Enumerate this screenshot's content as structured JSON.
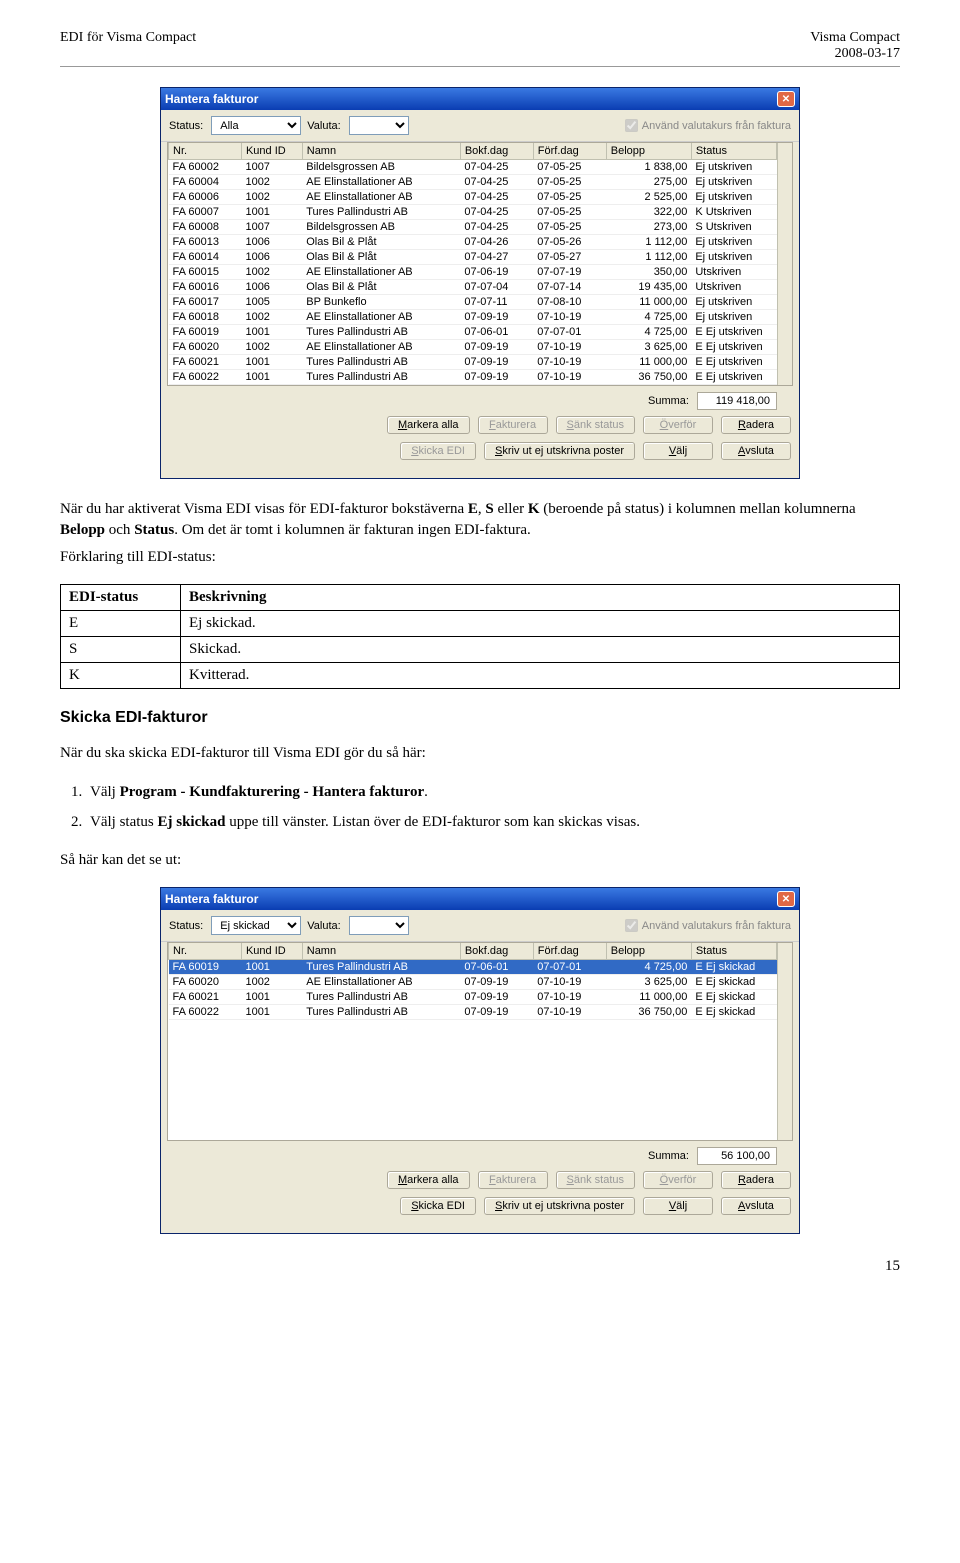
{
  "header": {
    "left": "EDI för Visma Compact",
    "right_line1": "Visma Compact",
    "right_line2": "2008-03-17"
  },
  "window1": {
    "title": "Hantera fakturor",
    "status_label": "Status:",
    "status_value": "Alla",
    "valuta_label": "Valuta:",
    "valuta_value": "",
    "use_rate_label": "Använd valutakurs från faktura",
    "columns": [
      "Nr.",
      "Kund ID",
      "Namn",
      "Bokf.dag",
      "Förf.dag",
      "Belopp",
      "Status"
    ],
    "colwidths": [
      "12%",
      "10%",
      "26%",
      "12%",
      "12%",
      "14%",
      "14%"
    ],
    "rows": [
      [
        "FA 60002",
        "1007",
        "Bildelsgrossen AB",
        "07-04-25",
        "07-05-25",
        "1 838,00",
        "Ej utskriven"
      ],
      [
        "FA 60004",
        "1002",
        "AE Elinstallationer AB",
        "07-04-25",
        "07-05-25",
        "275,00",
        "Ej utskriven"
      ],
      [
        "FA 60006",
        "1002",
        "AE Elinstallationer AB",
        "07-04-25",
        "07-05-25",
        "2 525,00",
        "Ej utskriven"
      ],
      [
        "FA 60007",
        "1001",
        "Tures Pallindustri AB",
        "07-04-25",
        "07-05-25",
        "322,00",
        "K Utskriven"
      ],
      [
        "FA 60008",
        "1007",
        "Bildelsgrossen AB",
        "07-04-25",
        "07-05-25",
        "273,00",
        "S Utskriven"
      ],
      [
        "FA 60013",
        "1006",
        "Olas Bil & Plåt",
        "07-04-26",
        "07-05-26",
        "1 112,00",
        "Ej utskriven"
      ],
      [
        "FA 60014",
        "1006",
        "Olas Bil & Plåt",
        "07-04-27",
        "07-05-27",
        "1 112,00",
        "Ej utskriven"
      ],
      [
        "FA 60015",
        "1002",
        "AE Elinstallationer AB",
        "07-06-19",
        "07-07-19",
        "350,00",
        "Utskriven"
      ],
      [
        "FA 60016",
        "1006",
        "Olas Bil & Plåt",
        "07-07-04",
        "07-07-14",
        "19 435,00",
        "Utskriven"
      ],
      [
        "FA 60017",
        "1005",
        "BP Bunkeflo",
        "07-07-11",
        "07-08-10",
        "11 000,00",
        "Ej utskriven"
      ],
      [
        "FA 60018",
        "1002",
        "AE Elinstallationer AB",
        "07-09-19",
        "07-10-19",
        "4 725,00",
        "Ej utskriven"
      ],
      [
        "FA 60019",
        "1001",
        "Tures Pallindustri AB",
        "07-06-01",
        "07-07-01",
        "4 725,00",
        "E Ej utskriven"
      ],
      [
        "FA 60020",
        "1002",
        "AE Elinstallationer AB",
        "07-09-19",
        "07-10-19",
        "3 625,00",
        "E Ej utskriven"
      ],
      [
        "FA 60021",
        "1001",
        "Tures Pallindustri AB",
        "07-09-19",
        "07-10-19",
        "11 000,00",
        "E Ej utskriven"
      ],
      [
        "FA 60022",
        "1001",
        "Tures Pallindustri AB",
        "07-09-19",
        "07-10-19",
        "36 750,00",
        "E Ej utskriven"
      ]
    ],
    "summa_label": "Summa:",
    "summa_value": "119 418,00",
    "buttons_row1": [
      "Markera alla",
      "Fakturera",
      "Sänk status",
      "Överför",
      "Radera"
    ],
    "buttons_row2": [
      "Skicka EDI",
      "Skriv ut ej utskrivna poster",
      "Välj",
      "Avsluta"
    ]
  },
  "para1_a": "När du har aktiverat Visma EDI visas för EDI-fakturor bokstäverna ",
  "para1_b": ", ",
  "para1_c": " eller ",
  "para1_d": " (beroende på status) i kolumnen mellan kolumnerna ",
  "para1_e": " och ",
  "para1_f": ". Om det är tomt i kolumnen är fakturan ingen EDI-faktura.",
  "para1_E": "E",
  "para1_S": "S",
  "para1_K": "K",
  "para1_belopp": "Belopp",
  "para1_status": "Status",
  "para2": "Förklaring till EDI-status:",
  "deftable": {
    "head": [
      "EDI-status",
      "Beskrivning"
    ],
    "rows": [
      [
        "E",
        "Ej skickad."
      ],
      [
        "S",
        "Skickad."
      ],
      [
        "K",
        "Kvitterad."
      ]
    ]
  },
  "sub_heading": "Skicka EDI-fakturor",
  "para3": "När du ska skicka EDI-fakturor till Visma EDI gör du så här:",
  "step1_a": "Välj ",
  "step1_b": "Program - Kundfakturering - Hantera fakturor",
  "step1_c": ".",
  "step2_a": "Välj status ",
  "step2_b": "Ej skickad",
  "step2_c": " uppe till vänster. Listan över de EDI-fakturor som kan skickas visas.",
  "para4": "Så här kan det se ut:",
  "window2": {
    "title": "Hantera fakturor",
    "status_label": "Status:",
    "status_value": "Ej skickad",
    "valuta_label": "Valuta:",
    "valuta_value": "",
    "use_rate_label": "Använd valutakurs från faktura",
    "columns": [
      "Nr.",
      "Kund ID",
      "Namn",
      "Bokf.dag",
      "Förf.dag",
      "Belopp",
      "Status"
    ],
    "colwidths": [
      "12%",
      "10%",
      "26%",
      "12%",
      "12%",
      "14%",
      "14%"
    ],
    "rows": [
      [
        "FA 60019",
        "1001",
        "Tures Pallindustri AB",
        "07-06-01",
        "07-07-01",
        "4 725,00",
        "E Ej skickad"
      ],
      [
        "FA 60020",
        "1002",
        "AE Elinstallationer AB",
        "07-09-19",
        "07-10-19",
        "3 625,00",
        "E Ej skickad"
      ],
      [
        "FA 60021",
        "1001",
        "Tures Pallindustri AB",
        "07-09-19",
        "07-10-19",
        "11 000,00",
        "E Ej skickad"
      ],
      [
        "FA 60022",
        "1001",
        "Tures Pallindustri AB",
        "07-09-19",
        "07-10-19",
        "36 750,00",
        "E Ej skickad"
      ]
    ],
    "summa_label": "Summa:",
    "summa_value": "56 100,00",
    "buttons_row1": [
      "Markera alla",
      "Fakturera",
      "Sänk status",
      "Överför",
      "Radera"
    ],
    "buttons_row2": [
      "Skicka EDI",
      "Skriv ut ej utskrivna poster",
      "Välj",
      "Avsluta"
    ]
  },
  "page_number": "15"
}
